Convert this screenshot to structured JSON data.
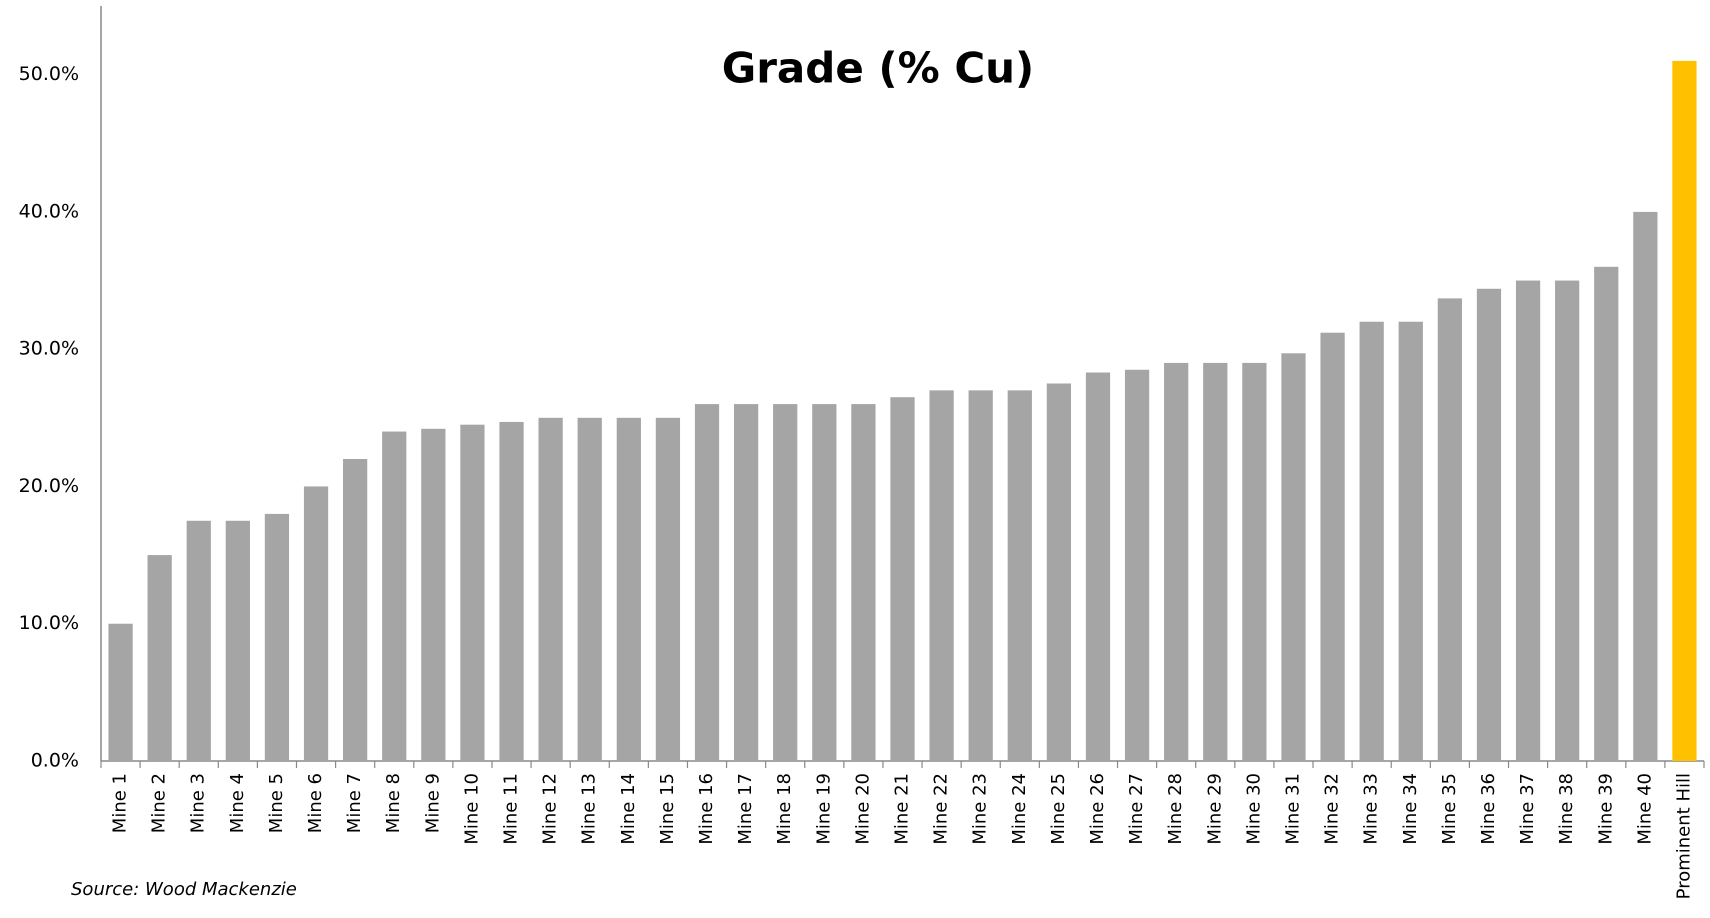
{
  "chart_data": {
    "type": "bar",
    "title": "Grade (% Cu)",
    "categories": [
      "Mine 1",
      "Mine 2",
      "Mine 3",
      "Mine 4",
      "Mine 5",
      "Mine 6",
      "Mine 7",
      "Mine 8",
      "Mine 9",
      "Mine 10",
      "Mine 11",
      "Mine 12",
      "Mine 13",
      "Mine 14",
      "Mine 15",
      "Mine 16",
      "Mine 17",
      "Mine 18",
      "Mine 19",
      "Mine 20",
      "Mine 21",
      "Mine 22",
      "Mine 23",
      "Mine 24",
      "Mine 25",
      "Mine 26",
      "Mine 27",
      "Mine 28",
      "Mine 29",
      "Mine 30",
      "Mine 31",
      "Mine 32",
      "Mine 33",
      "Mine 34",
      "Mine 35",
      "Mine 36",
      "Mine 37",
      "Mine 38",
      "Mine 39",
      "Mine 40",
      "Prominent Hill"
    ],
    "values": [
      10,
      15,
      17.5,
      17.5,
      18,
      20,
      22,
      24,
      24.2,
      24.5,
      24.7,
      25,
      25,
      25,
      25,
      26,
      26,
      26,
      26,
      26,
      26.5,
      27,
      27,
      27,
      27.5,
      28.3,
      28.5,
      29,
      29,
      29,
      29.7,
      31.2,
      32,
      32,
      33.7,
      34.4,
      35,
      35,
      36,
      40,
      51
    ],
    "colors": [
      "#a5a5a5",
      "#a5a5a5",
      "#a5a5a5",
      "#a5a5a5",
      "#a5a5a5",
      "#a5a5a5",
      "#a5a5a5",
      "#a5a5a5",
      "#a5a5a5",
      "#a5a5a5",
      "#a5a5a5",
      "#a5a5a5",
      "#a5a5a5",
      "#a5a5a5",
      "#a5a5a5",
      "#a5a5a5",
      "#a5a5a5",
      "#a5a5a5",
      "#a5a5a5",
      "#a5a5a5",
      "#a5a5a5",
      "#a5a5a5",
      "#a5a5a5",
      "#a5a5a5",
      "#a5a5a5",
      "#a5a5a5",
      "#a5a5a5",
      "#a5a5a5",
      "#a5a5a5",
      "#a5a5a5",
      "#a5a5a5",
      "#a5a5a5",
      "#a5a5a5",
      "#a5a5a5",
      "#a5a5a5",
      "#a5a5a5",
      "#a5a5a5",
      "#a5a5a5",
      "#a5a5a5",
      "#a5a5a5",
      "#ffc000"
    ],
    "ylim": [
      0,
      55
    ],
    "yticks": [
      {
        "value": 0,
        "label": "0.0%"
      },
      {
        "value": 10,
        "label": "10.0%"
      },
      {
        "value": 20,
        "label": "20.0%"
      },
      {
        "value": 30,
        "label": "30.0%"
      },
      {
        "value": 40,
        "label": "40.0%"
      },
      {
        "value": 50,
        "label": "50.0%"
      }
    ],
    "grid": false,
    "source": "Source: Wood Mackenzie"
  }
}
